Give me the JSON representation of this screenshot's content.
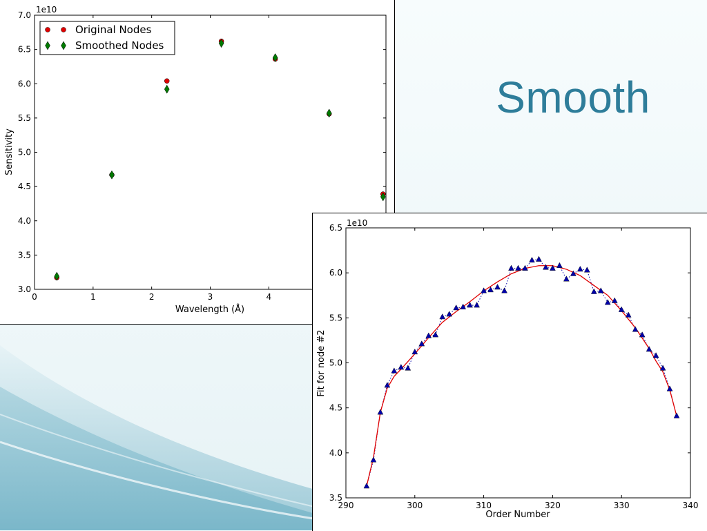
{
  "slide": {
    "title": "Smooth",
    "colors": {
      "title": "#2e7d9a",
      "wave_dark": "#6aaec2",
      "wave_light": "#b9dce6"
    }
  },
  "chart_data": [
    {
      "type": "scatter",
      "exponent_label": "1e10",
      "xlabel": "Wavelength (Å)",
      "ylabel": "Sensitivity",
      "xlim": [
        0,
        6
      ],
      "ylim": [
        3.0,
        7.0
      ],
      "xticks": [
        "0",
        "1",
        "2",
        "3",
        "4"
      ],
      "yticks": [
        "3.0",
        "3.5",
        "4.0",
        "4.5",
        "5.0",
        "5.5",
        "6.0",
        "6.5",
        "7.0"
      ],
      "grid": false,
      "legend_position": "top-left",
      "series": [
        {
          "name": "Original Nodes",
          "marker": "circle",
          "color": "#e00000",
          "x": [
            0.38,
            1.32,
            2.26,
            3.19,
            4.11,
            5.03,
            5.95
          ],
          "y": [
            3.17,
            4.67,
            6.04,
            6.62,
            6.36,
            5.56,
            4.39
          ]
        },
        {
          "name": "Smoothed Nodes",
          "marker": "diamond",
          "color": "#007a00",
          "x": [
            0.38,
            1.32,
            2.26,
            3.19,
            4.11,
            5.03,
            5.95
          ],
          "y": [
            3.19,
            4.67,
            5.92,
            6.59,
            6.38,
            5.57,
            4.35
          ]
        }
      ]
    },
    {
      "type": "line",
      "exponent_label": "1e10",
      "xlabel": "Order Number",
      "ylabel": "Fit for node #2",
      "xlim": [
        290,
        340
      ],
      "ylim": [
        3.5,
        6.5
      ],
      "xticks": [
        "290",
        "300",
        "310",
        "320",
        "330",
        "340"
      ],
      "yticks": [
        "3.5",
        "4.0",
        "4.5",
        "5.0",
        "5.5",
        "6.0",
        "6.5"
      ],
      "grid": false,
      "series": [
        {
          "marker": "triangle",
          "style": "dotted",
          "color": "#0000aa",
          "x": [
            293,
            294,
            295,
            296,
            297,
            298,
            299,
            300,
            301,
            302,
            303,
            304,
            305,
            306,
            307,
            308,
            309,
            310,
            311,
            312,
            313,
            314,
            315,
            316,
            317,
            318,
            319,
            320,
            321,
            322,
            323,
            324,
            325,
            326,
            327,
            328,
            329,
            330,
            331,
            332,
            333,
            334,
            335,
            336,
            337,
            338
          ],
          "y": [
            3.63,
            3.92,
            4.45,
            4.75,
            4.91,
            4.95,
            4.94,
            5.12,
            5.21,
            5.3,
            5.31,
            5.51,
            5.54,
            5.61,
            5.62,
            5.64,
            5.64,
            5.8,
            5.81,
            5.84,
            5.8,
            6.05,
            6.05,
            6.05,
            6.14,
            6.15,
            6.06,
            6.05,
            6.08,
            5.93,
            5.99,
            6.04,
            6.03,
            5.79,
            5.8,
            5.67,
            5.69,
            5.59,
            5.53,
            5.37,
            5.31,
            5.15,
            5.08,
            4.94,
            4.71,
            4.41
          ]
        },
        {
          "marker": "none",
          "style": "solid",
          "color": "#e00000",
          "x": [
            293,
            294,
            295,
            296,
            297,
            298,
            300,
            302,
            304,
            306,
            308,
            310,
            312,
            314,
            316,
            318,
            319,
            320,
            321,
            322,
            324,
            326,
            328,
            330,
            332,
            334,
            335,
            336,
            337,
            338
          ],
          "y": [
            3.63,
            3.95,
            4.45,
            4.72,
            4.85,
            4.93,
            5.1,
            5.28,
            5.45,
            5.57,
            5.68,
            5.8,
            5.9,
            5.99,
            6.05,
            6.08,
            6.08,
            6.08,
            6.06,
            6.04,
            5.97,
            5.86,
            5.75,
            5.58,
            5.39,
            5.16,
            5.02,
            4.9,
            4.7,
            4.41
          ]
        }
      ]
    }
  ]
}
